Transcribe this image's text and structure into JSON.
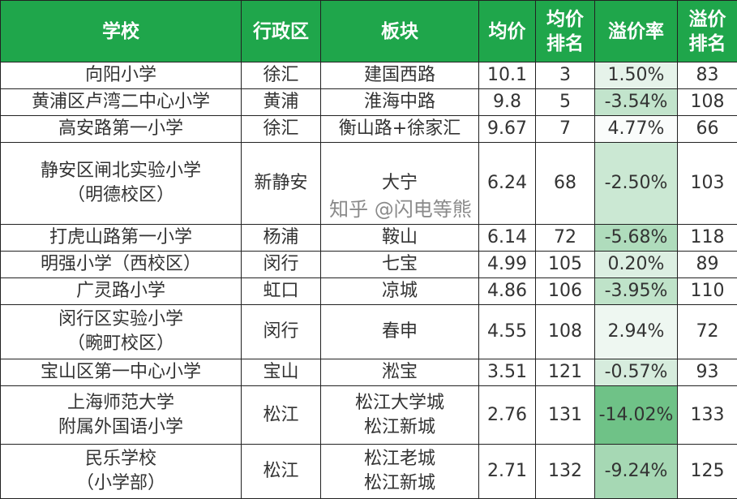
{
  "headers": [
    "学校",
    "行政区",
    "板块",
    "均价",
    "均价\n排名",
    "溢价率",
    "溢价\n排名"
  ],
  "rows": [
    {
      "school": "向阳小学",
      "district": "徐汇",
      "area": "建国西路",
      "price": "10.1",
      "price_rank": "3",
      "premium": "1.50%",
      "premium_rank": "83",
      "color": "#e6f3ea"
    },
    {
      "school": "黄浦区卢湾二中心小学",
      "district": "黄浦",
      "area": "淮海中路",
      "price": "9.8",
      "price_rank": "5",
      "premium": "-3.54%",
      "premium_rank": "108",
      "color": "#c2e4cc"
    },
    {
      "school": "高安路第一小学",
      "district": "徐汇",
      "area": "衡山路+徐家汇",
      "price": "9.67",
      "price_rank": "7",
      "premium": "4.77%",
      "premium_rank": "66",
      "color": "#fafcfb"
    },
    {
      "school": "静安区闸北实验小学\n（明德校区）",
      "district": "新静安",
      "area": "大宁",
      "price": "6.24",
      "price_rank": "68",
      "premium": "-2.50%",
      "premium_rank": "103",
      "color": "#cbe8d3"
    },
    {
      "school": "打虎山路第一小学",
      "district": "杨浦",
      "area": "鞍山",
      "price": "6.14",
      "price_rank": "72",
      "premium": "-5.68%",
      "premium_rank": "118",
      "color": "#afdcbc"
    },
    {
      "school": "明强小学（西校区）",
      "district": "闵行",
      "area": "七宝",
      "price": "4.99",
      "price_rank": "105",
      "premium": "0.20%",
      "premium_rank": "89",
      "color": "#dcefe2"
    },
    {
      "school": "广灵路小学",
      "district": "虹口",
      "area": "凉城",
      "price": "4.86",
      "price_rank": "106",
      "premium": "-3.95%",
      "premium_rank": "110",
      "color": "#bfe3c9"
    },
    {
      "school": "闵行区实验小学\n（畹町校区）",
      "district": "闵行",
      "area": "春申",
      "price": "4.55",
      "price_rank": "108",
      "premium": "2.94%",
      "premium_rank": "72",
      "color": "#eef7f1"
    },
    {
      "school": "宝山区第一中心小学",
      "district": "宝山",
      "area": "淞宝",
      "price": "3.51",
      "price_rank": "121",
      "premium": "-0.57%",
      "premium_rank": "93",
      "color": "#d6ecdd"
    },
    {
      "school": "上海师范大学\n附属外国语小学",
      "district": "松江",
      "area": "松江大学城\n松江新城",
      "price": "2.76",
      "price_rank": "131",
      "premium": "-14.02%",
      "premium_rank": "133",
      "color": "#6fc287"
    },
    {
      "school": "民乐学校\n（小学部）",
      "district": "松江",
      "area": "松江老城\n松江新城",
      "price": "2.71",
      "price_rank": "132",
      "premium": "-9.24%",
      "premium_rank": "125",
      "color": "#a6d8b4"
    }
  ],
  "watermark": "知乎 @闪电等熊"
}
